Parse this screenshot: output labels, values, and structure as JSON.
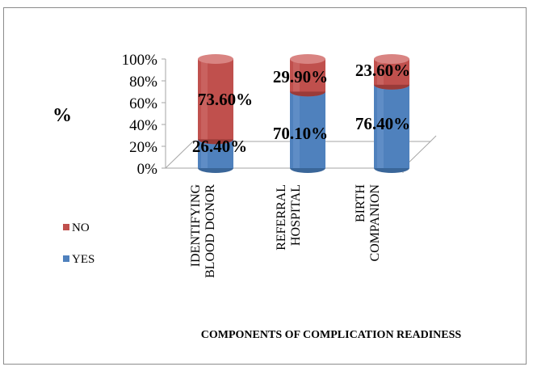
{
  "chart_data": {
    "type": "bar",
    "stacked": true,
    "style": "3d-cylinder",
    "categories": [
      "IDENTIFYING BLOOD DONOR",
      "REFERRAL HOSPITAL",
      "BIRTH COMPANION"
    ],
    "category_lines": [
      [
        "IDENTIFYING",
        "BLOOD DONOR"
      ],
      [
        "REFERRAL",
        "HOSPITAL"
      ],
      [
        "BIRTH",
        "COMPANION"
      ]
    ],
    "series": [
      {
        "name": "YES",
        "values": [
          26.4,
          70.1,
          76.4
        ],
        "labels": [
          "26.40%",
          "70.10%",
          "76.40%"
        ],
        "color": "#4f81bd"
      },
      {
        "name": "NO",
        "values": [
          73.6,
          29.9,
          23.6
        ],
        "labels": [
          "73.60%",
          "29.90%",
          "23.60%"
        ],
        "color": "#c0504d"
      }
    ],
    "ylabel": "%",
    "xlabel": "COMPONENTS OF COMPLICATION READINESS",
    "ylim": [
      0,
      100
    ],
    "yticks": [
      "0%",
      "20%",
      "40%",
      "60%",
      "80%",
      "100%"
    ],
    "grid": false,
    "legend": {
      "position": "left",
      "entries": [
        "NO",
        "YES"
      ]
    }
  }
}
